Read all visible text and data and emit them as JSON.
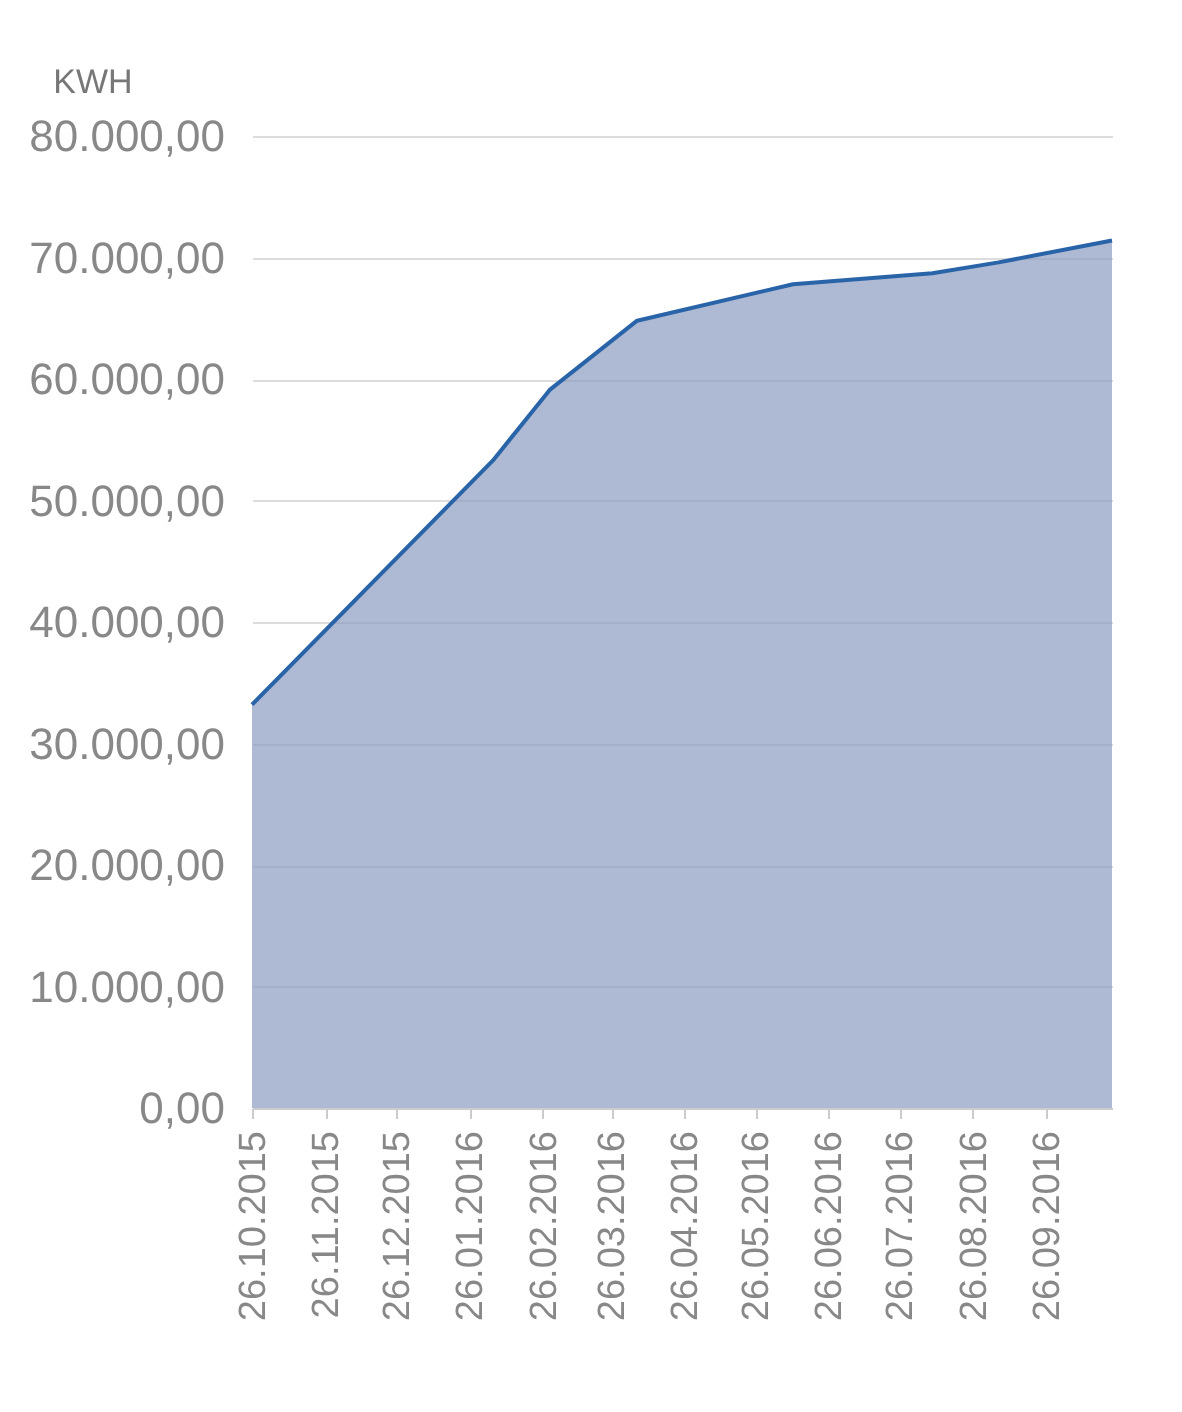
{
  "chart_data": {
    "type": "area",
    "ylabel": "KWH",
    "x": [
      "2015-10-26",
      "2016-02-05",
      "2016-02-29",
      "2016-04-06",
      "2016-06-11",
      "2016-08-09",
      "2016-09-06",
      "2016-10-24"
    ],
    "series": [
      {
        "color": "#8b9bc0",
        "values": [
          33200,
          53300,
          59100,
          64800,
          67800,
          68700,
          69600,
          71400
        ]
      }
    ],
    "xlim": [
      "2015-10-26",
      "2016-10-24"
    ],
    "xticks": [
      {
        "value": "2015-10-26",
        "label": "26.10.2015"
      },
      {
        "value": "2015-11-26",
        "label": "26.11.2015"
      },
      {
        "value": "2015-12-26",
        "label": "26.12.2015"
      },
      {
        "value": "2016-01-26",
        "label": "26.01.2016"
      },
      {
        "value": "2016-02-26",
        "label": "26.02.2016"
      },
      {
        "value": "2016-03-26",
        "label": "26.03.2016"
      },
      {
        "value": "2016-04-26",
        "label": "26.04.2016"
      },
      {
        "value": "2016-05-26",
        "label": "26.05.2016"
      },
      {
        "value": "2016-06-26",
        "label": "26.06.2016"
      },
      {
        "value": "2016-07-26",
        "label": "26.07.2016"
      },
      {
        "value": "2016-08-26",
        "label": "26.08.2016"
      },
      {
        "value": "2016-09-26",
        "label": "26.09.2016"
      }
    ],
    "ylim": [
      0,
      80000
    ],
    "yticks": [
      {
        "value": 0,
        "label": "0,00"
      },
      {
        "value": 10000,
        "label": "10.000,00"
      },
      {
        "value": 20000,
        "label": "20.000,00"
      },
      {
        "value": 30000,
        "label": "30.000,00"
      },
      {
        "value": 40000,
        "label": "40.000,00"
      },
      {
        "value": 50000,
        "label": "50.000,00"
      },
      {
        "value": 60000,
        "label": "60.000,00"
      },
      {
        "value": 70000,
        "label": "70.000,00"
      },
      {
        "value": 80000,
        "label": "80.000,00"
      }
    ],
    "grid": "y"
  }
}
